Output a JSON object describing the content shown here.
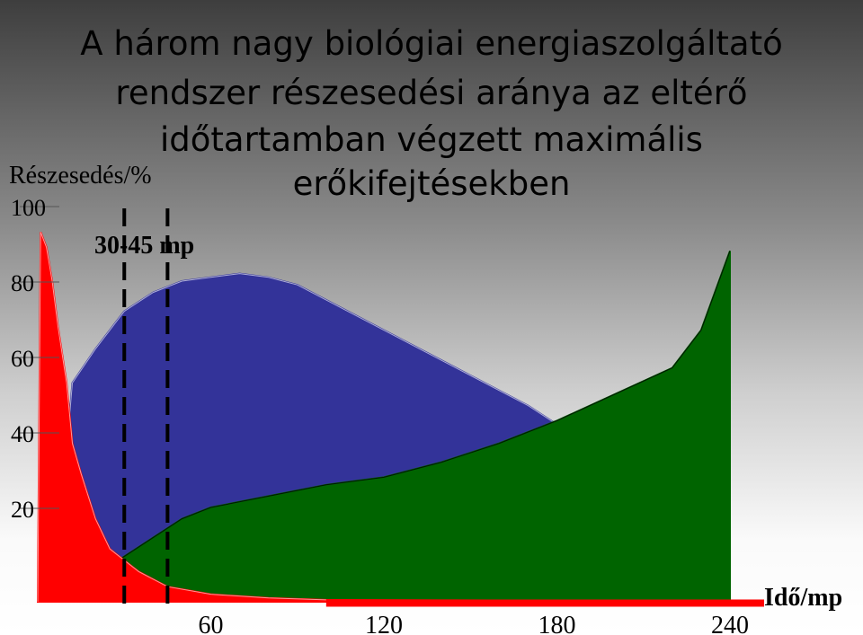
{
  "chart_data": {
    "type": "area",
    "title": [
      "A három nagy biológiai energiaszolgáltató",
      "rendszer részesedési aránya az eltérő",
      "időtartamban végzett maximális",
      "erőkifejtésekben"
    ],
    "ylabel": "Részesedés/%",
    "xlabel": "Idő/mp",
    "annotation": "30-45 mp",
    "annotation_x": [
      30,
      45
    ],
    "xlim": [
      0,
      240
    ],
    "ylim": [
      0,
      100
    ],
    "x_ticks": [
      "60",
      "120",
      "180",
      "240"
    ],
    "y_ticks": [
      "100",
      "80",
      "60",
      "40",
      "20"
    ],
    "grid": false,
    "series": [
      {
        "color": "#333399",
        "x": [
          10,
          12,
          20,
          30,
          40,
          50,
          60,
          70,
          80,
          90,
          110,
          130,
          150,
          170,
          180,
          200,
          220,
          235,
          240
        ],
        "y": [
          40,
          58,
          67,
          77,
          82,
          85,
          86,
          87,
          86,
          84,
          76,
          68,
          60,
          52,
          47,
          42,
          37,
          33,
          31
        ]
      },
      {
        "color": "#006400",
        "x": [
          0,
          5,
          10,
          20,
          30,
          40,
          50,
          60,
          80,
          100,
          120,
          140,
          160,
          180,
          200,
          220,
          230,
          240
        ],
        "y": [
          0,
          2,
          4,
          7,
          12,
          17,
          22,
          25,
          28,
          31,
          33,
          37,
          42,
          48,
          55,
          62,
          72,
          93
        ]
      },
      {
        "color": "#ff0000",
        "x": [
          0,
          1,
          3,
          5,
          7,
          10,
          12,
          15,
          20,
          25,
          35,
          45,
          60,
          80,
          100,
          140,
          180,
          240
        ],
        "y": [
          0,
          98,
          94,
          85,
          73,
          58,
          42,
          34,
          22,
          14,
          8,
          4,
          2,
          1,
          0.5,
          0.4,
          0.3,
          0.2
        ]
      }
    ]
  }
}
